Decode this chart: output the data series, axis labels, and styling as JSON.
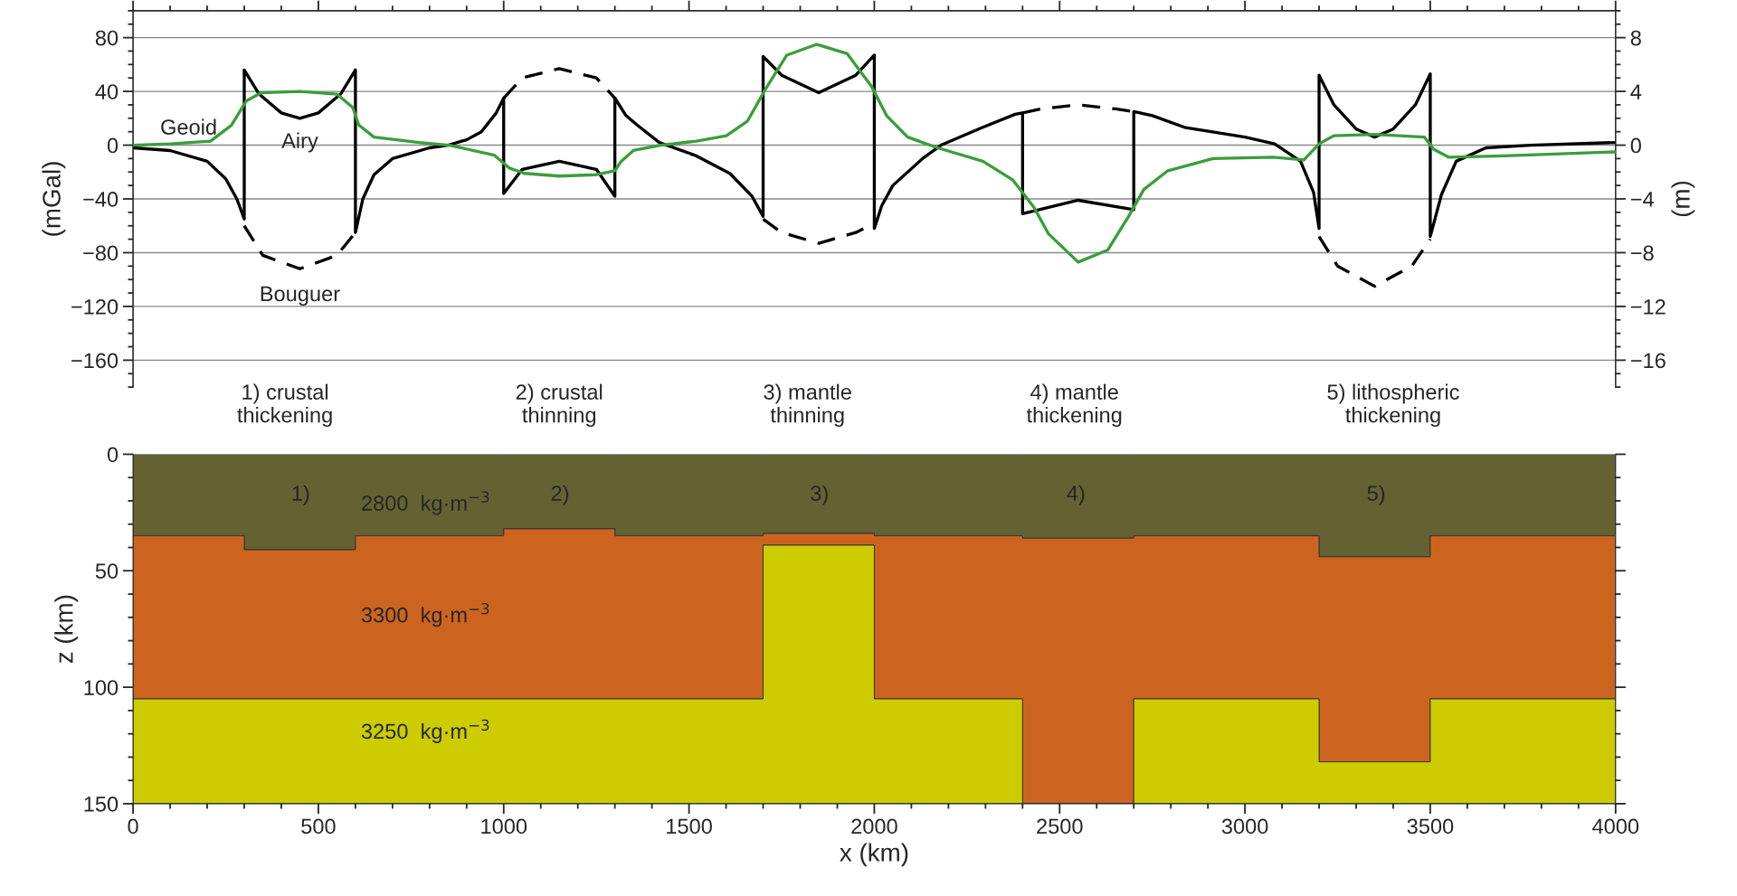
{
  "chart_data": [
    {
      "type": "line",
      "ylabel": "(mGal)",
      "y2label": "(m)",
      "xlim": [
        0,
        4000
      ],
      "xticks": [
        0,
        500,
        1000,
        1500,
        2000,
        2500,
        3000,
        3500,
        4000
      ],
      "ylim": [
        -180,
        100
      ],
      "yticks": [
        -160,
        -120,
        -80,
        -40,
        0,
        40,
        80
      ],
      "y2lim": [
        -18,
        10
      ],
      "y2ticks": [
        -16,
        -12,
        -8,
        -4,
        0,
        4,
        8
      ],
      "grid": "y",
      "tick_labels": "y",
      "series": [
        {
          "color": "#000000",
          "line_style": "dashed",
          "x": [
            300,
            350,
            450,
            550,
            600,
            800,
            1000,
            1050,
            1150,
            1250,
            1300,
            1500,
            1700,
            1750,
            1850,
            1950,
            2000,
            2200,
            2400,
            2450,
            2550,
            2650,
            2700,
            3000,
            3200,
            3250,
            3350,
            3450,
            3500
          ],
          "values": [
            -60,
            -82,
            -92,
            -82,
            -65,
            null,
            35,
            50,
            57,
            50,
            35,
            null,
            -55,
            -65,
            -73,
            -65,
            -58,
            null,
            24,
            27,
            30,
            27,
            25,
            null,
            -68,
            -90,
            -105,
            -90,
            -70
          ]
        },
        {
          "color": "#000000",
          "line_style": "solid",
          "x": [
            0,
            100,
            200,
            250,
            280,
            300,
            300,
            340,
            400,
            450,
            500,
            560,
            600,
            600,
            620,
            650,
            700,
            800,
            850,
            900,
            940,
            980,
            1000,
            1000,
            1050,
            1150,
            1250,
            1300,
            1300,
            1330,
            1360,
            1420,
            1520,
            1610,
            1670,
            1700,
            1700,
            1750,
            1850,
            1950,
            2000,
            2000,
            2020,
            2050,
            2130,
            2180,
            2290,
            2380,
            2400,
            2400,
            2550,
            2700,
            2700,
            2750,
            2840,
            3000,
            3080,
            3150,
            3185,
            3200,
            3200,
            3240,
            3300,
            3350,
            3400,
            3460,
            3500,
            3500,
            3530,
            3570,
            3650,
            3770,
            4000
          ],
          "values": [
            -2,
            -4,
            -12,
            -25,
            -40,
            -55,
            56,
            38,
            24,
            20,
            24,
            38,
            56,
            -65,
            -40,
            -22,
            -10,
            -2,
            0,
            4,
            10,
            24,
            35,
            -36,
            -18,
            -12,
            -18,
            -38,
            35,
            22,
            15,
            2,
            -8,
            -21,
            -38,
            -53,
            66,
            52,
            39,
            52,
            67,
            -62,
            -45,
            -30,
            -10,
            0,
            13,
            23,
            24,
            -51,
            -41,
            -48,
            25,
            22,
            13,
            6,
            1,
            -12,
            -35,
            -62,
            52,
            30,
            12,
            6,
            12,
            30,
            53,
            -68,
            -37,
            -12,
            -2,
            0,
            2
          ]
        },
        {
          "color": "#3a9e3a",
          "line_style": "solid",
          "axis": "y2",
          "x": [
            0,
            100,
            209,
            266,
            306,
            346,
            450,
            550,
            593,
            609,
            650,
            772,
            853,
            975,
            1015,
            1056,
            1150,
            1250,
            1300,
            1317,
            1350,
            1423,
            1520,
            1601,
            1658,
            1707,
            1764,
            1845,
            1927,
            1992,
            2033,
            2090,
            2171,
            2293,
            2374,
            2430,
            2470,
            2550,
            2630,
            2686,
            2727,
            2792,
            2914,
            3077,
            3159,
            3200,
            3240,
            3350,
            3484,
            3509,
            3550,
            3700,
            4000
          ],
          "values": [
            0,
            0.1,
            0.3,
            1.5,
            3.3,
            3.9,
            4.0,
            3.8,
            2.8,
            1.5,
            0.6,
            0.2,
            0,
            -0.75,
            -1.7,
            -2.1,
            -2.3,
            -2.2,
            -1.9,
            -1.2,
            -0.4,
            0,
            0.3,
            0.7,
            1.8,
            4.2,
            6.7,
            7.5,
            6.8,
            4.4,
            2.2,
            0.6,
            -0.2,
            -1.2,
            -2.6,
            -4.6,
            -6.6,
            -8.7,
            -7.8,
            -5.3,
            -3.3,
            -1.9,
            -1.0,
            -0.9,
            -1.1,
            0.1,
            0.7,
            0.8,
            0.6,
            -0.3,
            -0.9,
            -0.8,
            -0.5
          ]
        }
      ],
      "annotations": [
        "Geoid",
        "Airy",
        "Bouguer"
      ]
    },
    {
      "type": "area",
      "stacked": true,
      "xlabel": "x (km)",
      "ylabel": "z (km)",
      "xlim": [
        0,
        4000
      ],
      "xticks": [
        0,
        500,
        1000,
        1500,
        2000,
        2500,
        3000,
        3500,
        4000
      ],
      "ylim": [
        150,
        0
      ],
      "yticks": [
        0,
        50,
        100,
        150
      ],
      "x": [
        0,
        300,
        300,
        600,
        600,
        1000,
        1000,
        1300,
        1300,
        1700,
        1700,
        2000,
        2000,
        2400,
        2400,
        2700,
        2700,
        3200,
        3200,
        3500,
        3500,
        4000
      ],
      "series": [
        {
          "color": "#646232",
          "values": [
            35,
            35,
            41,
            41,
            35,
            35,
            32,
            32,
            35,
            35,
            34,
            34,
            35,
            35,
            36,
            36,
            35,
            35,
            44,
            44,
            35,
            35
          ]
        },
        {
          "color": "#cc6420",
          "values": [
            70,
            70,
            64,
            64,
            70,
            70,
            73,
            73,
            70,
            70,
            5,
            5,
            70,
            70,
            114,
            114,
            70,
            70,
            88,
            88,
            70,
            70
          ]
        },
        {
          "color": "#cccc00",
          "values": [
            45,
            45,
            45,
            45,
            45,
            45,
            45,
            45,
            45,
            45,
            111,
            111,
            45,
            45,
            0,
            0,
            45,
            45,
            18,
            18,
            45,
            45
          ]
        }
      ],
      "annotations": [
        "2800  kg·m$^{−3}$",
        "3300  kg·m$^{−3}$",
        "3250  kg·m$^{−3}$",
        "1)",
        "2)",
        "3)",
        "4)",
        "5)",
        "1) crustal\nthickening",
        "2) crustal\nthinning",
        "3) mantle\nthinning",
        "4) mantle\nthickening",
        "5) lithospheric\nthickening"
      ]
    }
  ]
}
